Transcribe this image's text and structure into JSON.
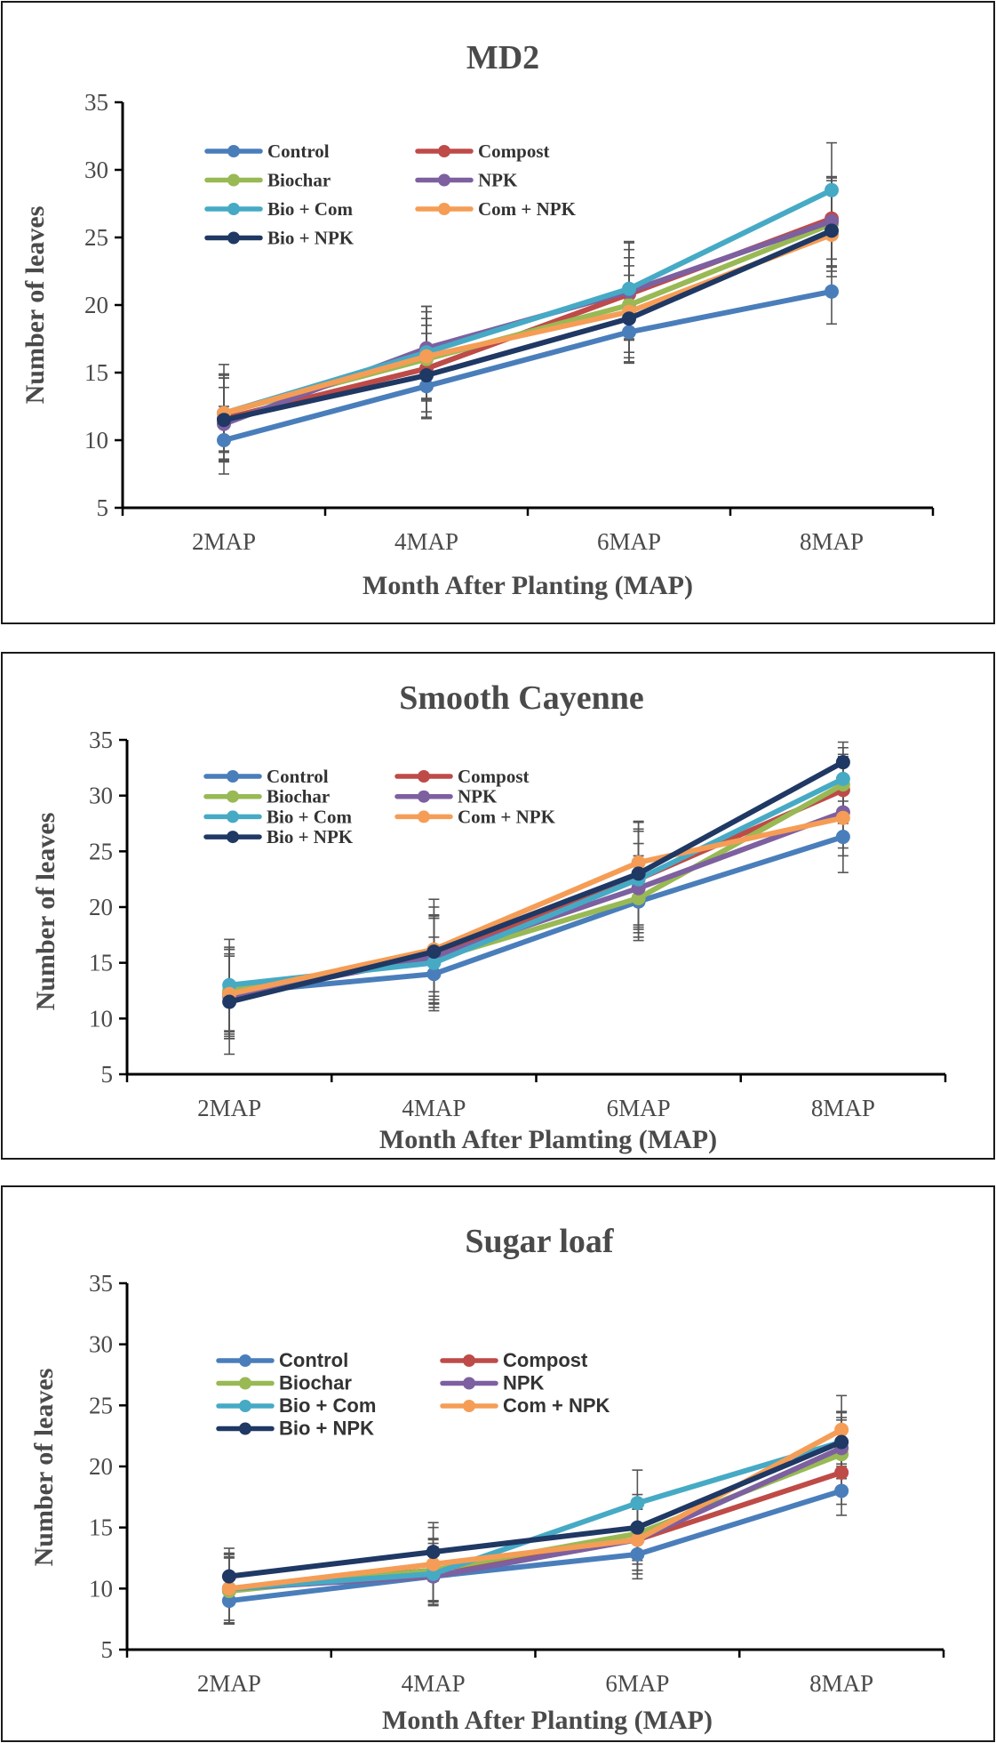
{
  "chart_data": [
    {
      "type": "line",
      "title": "MD2",
      "xlabel": "Month After Planting (MAP)",
      "ylabel": "Number of leaves",
      "ylim": [
        5,
        35
      ],
      "yticks": [
        5,
        10,
        15,
        20,
        25,
        30,
        35
      ],
      "categories": [
        "2MAP",
        "4MAP",
        "6MAP",
        "8MAP"
      ],
      "legend_position": "top-left",
      "series": [
        {
          "name": "Control",
          "color": "#4a7ebb",
          "values": [
            10,
            14,
            18,
            21
          ],
          "errors": [
            2.5,
            2.4,
            2.3,
            2.4
          ]
        },
        {
          "name": "Compost",
          "color": "#be4b48",
          "values": [
            11.6,
            15.3,
            20.8,
            26.4
          ],
          "errors": [
            3.0,
            3.2,
            3.3,
            3.0
          ]
        },
        {
          "name": "Biochar",
          "color": "#98b954",
          "values": [
            12,
            16,
            20,
            26
          ],
          "errors": [
            2.8,
            3.0,
            3.5,
            3.2
          ]
        },
        {
          "name": "NPK",
          "color": "#7d60a0",
          "values": [
            11.2,
            16.8,
            21,
            26.2
          ],
          "errors": [
            2.7,
            3.1,
            3.6,
            3.3
          ]
        },
        {
          "name": "Bio + Com",
          "color": "#46aac5",
          "values": [
            12,
            16.5,
            21.2,
            28.5
          ],
          "errors": [
            3.6,
            3.4,
            3.5,
            3.5
          ]
        },
        {
          "name": "Com + NPK",
          "color": "#f59d56",
          "values": [
            12,
            16.2,
            19.5,
            25.2
          ],
          "errors": [
            2.9,
            3.3,
            3.4,
            3.1
          ]
        },
        {
          "name": "Bio + NPK",
          "color": "#1f3864",
          "values": [
            11.5,
            14.8,
            19,
            25.5
          ],
          "errors": [
            3.1,
            3.1,
            3.2,
            3.0
          ]
        }
      ]
    },
    {
      "type": "line",
      "title": "Smooth Cayenne",
      "xlabel": "Month After Plamting (MAP)",
      "ylabel": "Number of leaves",
      "ylim": [
        5,
        35
      ],
      "yticks": [
        5,
        10,
        15,
        20,
        25,
        30,
        35
      ],
      "categories": [
        "2MAP",
        "4MAP",
        "6MAP",
        "8MAP"
      ],
      "legend_position": "top-left",
      "series": [
        {
          "name": "Control",
          "color": "#4a7ebb",
          "values": [
            12.3,
            14,
            20.5,
            26.3
          ],
          "errors": [
            3.5,
            3.3,
            3.2,
            3.2
          ]
        },
        {
          "name": "Compost",
          "color": "#be4b48",
          "values": [
            12.2,
            15.5,
            22.5,
            30.5
          ],
          "errors": [
            4.0,
            3.8,
            4.3,
            3.0
          ]
        },
        {
          "name": "Biochar",
          "color": "#98b954",
          "values": [
            12.5,
            15.3,
            20.8,
            31
          ],
          "errors": [
            3.9,
            3.9,
            3.8,
            2.7
          ]
        },
        {
          "name": "NPK",
          "color": "#7d60a0",
          "values": [
            12,
            15.5,
            21.7,
            28.5
          ],
          "errors": [
            3.6,
            3.5,
            4.0,
            3.2
          ]
        },
        {
          "name": "Bio + Com",
          "color": "#46aac5",
          "values": [
            13,
            15,
            22.5,
            31.5
          ],
          "errors": [
            4.1,
            4.0,
            4.5,
            2.8
          ]
        },
        {
          "name": "Com + NPK",
          "color": "#f59d56",
          "values": [
            12.2,
            16.2,
            24,
            28
          ],
          "errors": [
            4.0,
            3.8,
            3.7,
            3.4
          ]
        },
        {
          "name": "Bio + NPK",
          "color": "#1f3864",
          "values": [
            11.5,
            16,
            23,
            33
          ],
          "errors": [
            4.7,
            4.7,
            4.6,
            1.8
          ]
        }
      ]
    },
    {
      "type": "line",
      "title": "Sugar loaf",
      "xlabel": "Month After Planting (MAP)",
      "ylabel": "Number of leaves",
      "ylim": [
        5,
        35
      ],
      "yticks": [
        5,
        10,
        15,
        20,
        25,
        30,
        35
      ],
      "categories": [
        "2MAP",
        "4MAP",
        "6MAP",
        "8MAP"
      ],
      "legend_position": "top-left",
      "series": [
        {
          "name": "Control",
          "color": "#4a7ebb",
          "values": [
            9,
            11,
            12.8,
            18
          ],
          "errors": [
            1.9,
            2.0,
            2.0,
            2.0
          ]
        },
        {
          "name": "Compost",
          "color": "#be4b48",
          "values": [
            10,
            11.5,
            14,
            19.5
          ],
          "errors": [
            2.8,
            2.5,
            2.5,
            2.6
          ]
        },
        {
          "name": "Biochar",
          "color": "#98b954",
          "values": [
            9.8,
            11.5,
            14.5,
            21
          ],
          "errors": [
            2.7,
            2.6,
            2.5,
            2.8
          ]
        },
        {
          "name": "NPK",
          "color": "#7d60a0",
          "values": [
            10,
            11,
            14,
            21.5
          ],
          "errors": [
            2.6,
            2.4,
            2.5,
            2.5
          ]
        },
        {
          "name": "Bio + Com",
          "color": "#46aac5",
          "values": [
            10,
            11.2,
            17,
            22
          ],
          "errors": [
            2.8,
            2.5,
            2.7,
            2.5
          ]
        },
        {
          "name": "Com + NPK",
          "color": "#f59d56",
          "values": [
            10,
            12,
            14,
            23
          ],
          "errors": [
            2.9,
            3.0,
            2.8,
            2.8
          ]
        },
        {
          "name": "Bio + NPK",
          "color": "#1f3864",
          "values": [
            11,
            13,
            15,
            22
          ],
          "errors": [
            2.3,
            2.4,
            2.7,
            2.4
          ]
        }
      ]
    }
  ]
}
